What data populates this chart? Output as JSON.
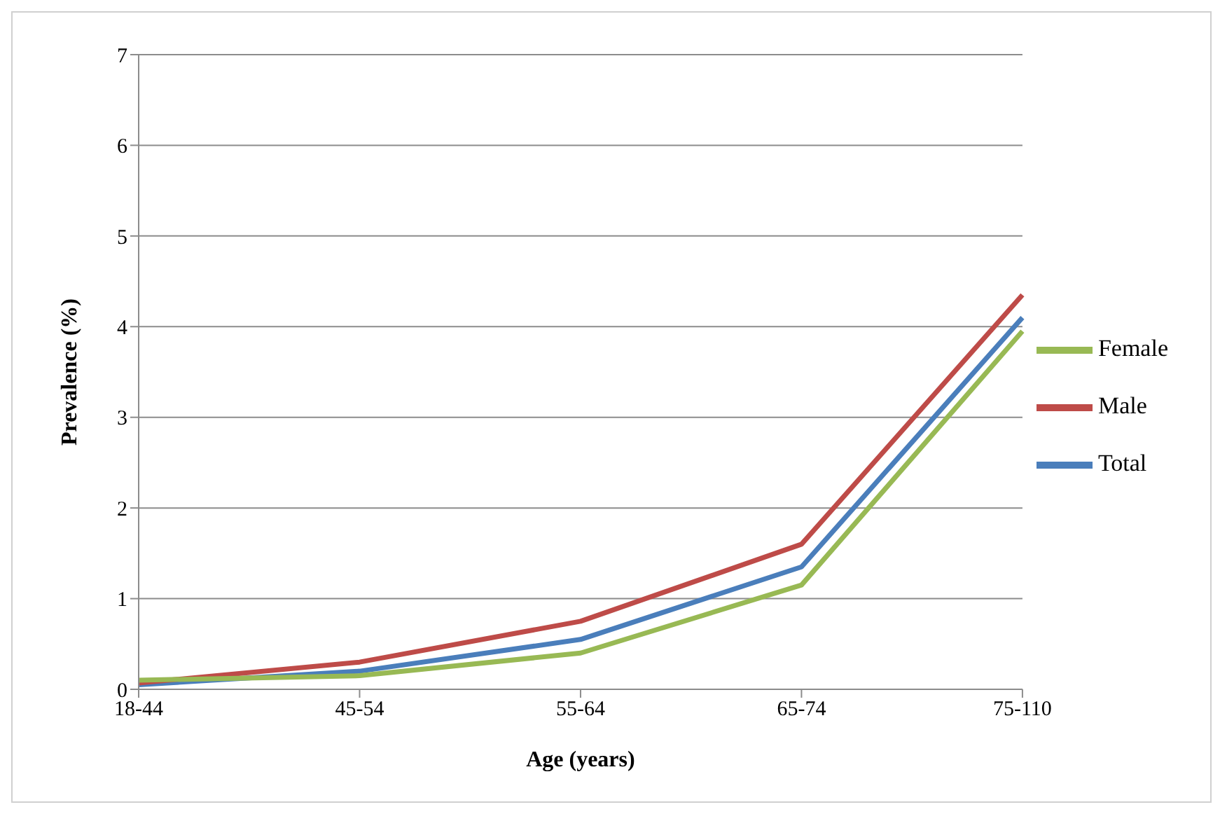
{
  "chart_data": {
    "type": "line",
    "xlabel": "Age (years)",
    "ylabel": "Prevalence (%)",
    "categories": [
      "18-44",
      "45-54",
      "55-64",
      "65-74",
      "75-110"
    ],
    "series": [
      {
        "name": "Total",
        "color": "#4a7ebb",
        "values": [
          0.05,
          0.2,
          0.55,
          1.35,
          4.1
        ]
      },
      {
        "name": "Male",
        "color": "#be4b48",
        "values": [
          0.07,
          0.3,
          0.75,
          1.6,
          4.35
        ]
      },
      {
        "name": "Female",
        "color": "#98b954",
        "values": [
          0.1,
          0.15,
          0.4,
          1.15,
          3.95
        ]
      }
    ],
    "ylim": [
      0,
      7
    ],
    "yticks": [
      0,
      1,
      2,
      3,
      4,
      5,
      6,
      7
    ],
    "grid": "y",
    "legend": "right",
    "marker": "none",
    "line_style": "solid"
  }
}
